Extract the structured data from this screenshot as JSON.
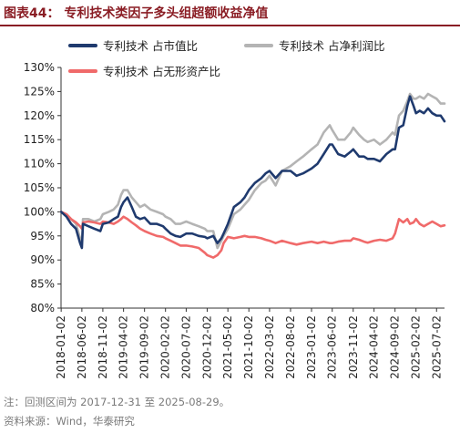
{
  "header": {
    "title": "图表44：  专利技术类因子多头组超额收益净值"
  },
  "notes": {
    "line1": "注：回测区间为 2017-12-31 至 2025-08-29。",
    "line2": "资料来源：Wind，华泰研究"
  },
  "chart_data": {
    "type": "line",
    "title": "",
    "xlabel": "",
    "ylabel": "",
    "ylim": [
      0.8,
      1.3
    ],
    "y_ticks": [
      "80%",
      "85%",
      "90%",
      "95%",
      "100%",
      "105%",
      "110%",
      "115%",
      "120%",
      "125%",
      "130%"
    ],
    "x_range": [
      "2018-01-01",
      "2025-08-29"
    ],
    "x_ticks": [
      "2018-01-02",
      "2018-06-02",
      "2018-11-02",
      "2019-04-02",
      "2019-09-02",
      "2020-02-02",
      "2020-07-02",
      "2020-12-02",
      "2021-05-02",
      "2021-10-02",
      "2022-03-02",
      "2022-08-02",
      "2023-01-02",
      "2023-06-02",
      "2023-11-02",
      "2024-04-02",
      "2024-09-02",
      "2025-02-02",
      "2025-07-02"
    ],
    "legend_position": "top",
    "grid": false,
    "series": [
      {
        "name": "专利技术 占市值比",
        "color": "#1f3a6e",
        "points": [
          [
            "2018-01-02",
            1.0
          ],
          [
            "2018-02-10",
            0.99
          ],
          [
            "2018-03-15",
            0.975
          ],
          [
            "2018-04-20",
            0.965
          ],
          [
            "2018-05-20",
            0.935
          ],
          [
            "2018-06-02",
            0.925
          ],
          [
            "2018-06-10",
            0.975
          ],
          [
            "2018-07-20",
            0.97
          ],
          [
            "2018-09-01",
            0.965
          ],
          [
            "2018-10-15",
            0.96
          ],
          [
            "2018-11-02",
            0.975
          ],
          [
            "2018-12-15",
            0.978
          ],
          [
            "2019-01-20",
            0.985
          ],
          [
            "2019-02-20",
            0.99
          ],
          [
            "2019-03-15",
            1.01
          ],
          [
            "2019-04-02",
            1.02
          ],
          [
            "2019-05-01",
            1.03
          ],
          [
            "2019-06-01",
            1.01
          ],
          [
            "2019-07-01",
            0.99
          ],
          [
            "2019-08-01",
            0.985
          ],
          [
            "2019-09-02",
            0.988
          ],
          [
            "2019-10-15",
            0.975
          ],
          [
            "2019-12-01",
            0.975
          ],
          [
            "2020-01-15",
            0.97
          ],
          [
            "2020-02-02",
            0.965
          ],
          [
            "2020-03-10",
            0.955
          ],
          [
            "2020-04-15",
            0.95
          ],
          [
            "2020-05-20",
            0.948
          ],
          [
            "2020-07-02",
            0.955
          ],
          [
            "2020-08-15",
            0.955
          ],
          [
            "2020-10-01",
            0.95
          ],
          [
            "2020-11-15",
            0.948
          ],
          [
            "2020-12-02",
            0.945
          ],
          [
            "2021-01-15",
            0.95
          ],
          [
            "2021-02-15",
            0.935
          ],
          [
            "2021-03-15",
            0.945
          ],
          [
            "2021-04-01",
            0.955
          ],
          [
            "2021-05-02",
            0.975
          ],
          [
            "2021-06-15",
            1.01
          ],
          [
            "2021-08-01",
            1.02
          ],
          [
            "2021-09-01",
            1.03
          ],
          [
            "2021-10-02",
            1.045
          ],
          [
            "2021-11-15",
            1.06
          ],
          [
            "2022-01-01",
            1.07
          ],
          [
            "2022-02-01",
            1.08
          ],
          [
            "2022-03-02",
            1.085
          ],
          [
            "2022-04-15",
            1.07
          ],
          [
            "2022-06-01",
            1.085
          ],
          [
            "2022-08-02",
            1.085
          ],
          [
            "2022-09-15",
            1.075
          ],
          [
            "2022-11-01",
            1.08
          ],
          [
            "2023-01-02",
            1.09
          ],
          [
            "2023-02-15",
            1.1
          ],
          [
            "2023-04-01",
            1.12
          ],
          [
            "2023-05-15",
            1.14
          ],
          [
            "2023-06-02",
            1.14
          ],
          [
            "2023-07-15",
            1.12
          ],
          [
            "2023-09-01",
            1.115
          ],
          [
            "2023-10-15",
            1.125
          ],
          [
            "2023-11-02",
            1.13
          ],
          [
            "2023-12-15",
            1.115
          ],
          [
            "2024-01-20",
            1.115
          ],
          [
            "2024-02-15",
            1.11
          ],
          [
            "2024-04-02",
            1.11
          ],
          [
            "2024-05-15",
            1.105
          ],
          [
            "2024-07-01",
            1.12
          ],
          [
            "2024-08-15",
            1.13
          ],
          [
            "2024-09-02",
            1.13
          ],
          [
            "2024-10-01",
            1.175
          ],
          [
            "2024-11-01",
            1.18
          ],
          [
            "2024-12-01",
            1.22
          ],
          [
            "2024-12-20",
            1.24
          ],
          [
            "2025-01-15",
            1.22
          ],
          [
            "2025-02-02",
            1.205
          ],
          [
            "2025-03-01",
            1.21
          ],
          [
            "2025-04-01",
            1.205
          ],
          [
            "2025-05-01",
            1.215
          ],
          [
            "2025-06-01",
            1.205
          ],
          [
            "2025-07-02",
            1.2
          ],
          [
            "2025-08-01",
            1.2
          ],
          [
            "2025-08-29",
            1.188
          ]
        ]
      },
      {
        "name": "专利技术 占净利润比",
        "color": "#b4b4b4",
        "points": [
          [
            "2018-01-02",
            1.0
          ],
          [
            "2018-02-10",
            0.995
          ],
          [
            "2018-03-15",
            0.985
          ],
          [
            "2018-04-20",
            0.975
          ],
          [
            "2018-05-20",
            0.945
          ],
          [
            "2018-06-02",
            0.935
          ],
          [
            "2018-06-10",
            0.985
          ],
          [
            "2018-07-20",
            0.985
          ],
          [
            "2018-09-01",
            0.98
          ],
          [
            "2018-10-15",
            0.985
          ],
          [
            "2018-11-02",
            0.995
          ],
          [
            "2018-12-15",
            1.0
          ],
          [
            "2019-01-20",
            1.005
          ],
          [
            "2019-02-20",
            1.015
          ],
          [
            "2019-03-15",
            1.035
          ],
          [
            "2019-04-02",
            1.045
          ],
          [
            "2019-05-01",
            1.045
          ],
          [
            "2019-06-01",
            1.03
          ],
          [
            "2019-07-01",
            1.02
          ],
          [
            "2019-08-01",
            1.01
          ],
          [
            "2019-09-02",
            1.015
          ],
          [
            "2019-10-15",
            1.005
          ],
          [
            "2019-12-01",
            1.0
          ],
          [
            "2020-01-15",
            0.995
          ],
          [
            "2020-02-02",
            0.99
          ],
          [
            "2020-03-10",
            0.985
          ],
          [
            "2020-04-15",
            0.975
          ],
          [
            "2020-05-20",
            0.975
          ],
          [
            "2020-07-02",
            0.98
          ],
          [
            "2020-08-15",
            0.975
          ],
          [
            "2020-10-01",
            0.97
          ],
          [
            "2020-11-15",
            0.965
          ],
          [
            "2020-12-02",
            0.96
          ],
          [
            "2021-01-15",
            0.96
          ],
          [
            "2021-02-15",
            0.925
          ],
          [
            "2021-03-15",
            0.94
          ],
          [
            "2021-04-01",
            0.95
          ],
          [
            "2021-05-02",
            0.965
          ],
          [
            "2021-06-15",
            0.995
          ],
          [
            "2021-08-01",
            1.005
          ],
          [
            "2021-09-01",
            1.015
          ],
          [
            "2021-10-02",
            1.025
          ],
          [
            "2021-11-15",
            1.045
          ],
          [
            "2022-01-01",
            1.06
          ],
          [
            "2022-02-01",
            1.065
          ],
          [
            "2022-03-02",
            1.075
          ],
          [
            "2022-04-15",
            1.055
          ],
          [
            "2022-06-01",
            1.085
          ],
          [
            "2022-08-02",
            1.095
          ],
          [
            "2022-09-15",
            1.105
          ],
          [
            "2022-11-01",
            1.115
          ],
          [
            "2023-01-02",
            1.13
          ],
          [
            "2023-02-15",
            1.14
          ],
          [
            "2023-04-01",
            1.165
          ],
          [
            "2023-05-15",
            1.18
          ],
          [
            "2023-06-02",
            1.17
          ],
          [
            "2023-07-15",
            1.15
          ],
          [
            "2023-09-01",
            1.15
          ],
          [
            "2023-10-15",
            1.165
          ],
          [
            "2023-11-02",
            1.175
          ],
          [
            "2023-12-15",
            1.16
          ],
          [
            "2024-01-20",
            1.15
          ],
          [
            "2024-02-15",
            1.145
          ],
          [
            "2024-04-02",
            1.15
          ],
          [
            "2024-05-15",
            1.14
          ],
          [
            "2024-07-01",
            1.15
          ],
          [
            "2024-08-15",
            1.165
          ],
          [
            "2024-09-02",
            1.16
          ],
          [
            "2024-10-01",
            1.2
          ],
          [
            "2024-11-01",
            1.21
          ],
          [
            "2024-12-01",
            1.23
          ],
          [
            "2024-12-20",
            1.245
          ],
          [
            "2025-01-15",
            1.235
          ],
          [
            "2025-02-02",
            1.235
          ],
          [
            "2025-03-01",
            1.24
          ],
          [
            "2025-04-01",
            1.235
          ],
          [
            "2025-05-01",
            1.245
          ],
          [
            "2025-06-01",
            1.24
          ],
          [
            "2025-07-02",
            1.235
          ],
          [
            "2025-08-01",
            1.225
          ],
          [
            "2025-08-29",
            1.225
          ]
        ]
      },
      {
        "name": "专利技术 占无形资产比",
        "color": "#f06a6a",
        "points": [
          [
            "2018-01-02",
            1.0
          ],
          [
            "2018-02-10",
            0.995
          ],
          [
            "2018-03-15",
            0.985
          ],
          [
            "2018-04-20",
            0.978
          ],
          [
            "2018-05-20",
            0.97
          ],
          [
            "2018-06-02",
            0.965
          ],
          [
            "2018-06-10",
            0.978
          ],
          [
            "2018-07-20",
            0.98
          ],
          [
            "2018-09-01",
            0.978
          ],
          [
            "2018-10-15",
            0.975
          ],
          [
            "2018-11-02",
            0.98
          ],
          [
            "2018-12-15",
            0.978
          ],
          [
            "2019-01-20",
            0.975
          ],
          [
            "2019-02-20",
            0.98
          ],
          [
            "2019-03-15",
            0.985
          ],
          [
            "2019-04-02",
            0.99
          ],
          [
            "2019-05-01",
            0.985
          ],
          [
            "2019-06-01",
            0.978
          ],
          [
            "2019-07-01",
            0.972
          ],
          [
            "2019-08-01",
            0.965
          ],
          [
            "2019-09-02",
            0.96
          ],
          [
            "2019-10-15",
            0.955
          ],
          [
            "2019-12-01",
            0.95
          ],
          [
            "2020-01-15",
            0.948
          ],
          [
            "2020-02-02",
            0.945
          ],
          [
            "2020-03-10",
            0.94
          ],
          [
            "2020-04-15",
            0.935
          ],
          [
            "2020-05-20",
            0.93
          ],
          [
            "2020-07-02",
            0.93
          ],
          [
            "2020-08-15",
            0.928
          ],
          [
            "2020-10-01",
            0.925
          ],
          [
            "2020-11-15",
            0.915
          ],
          [
            "2020-12-02",
            0.91
          ],
          [
            "2021-01-15",
            0.905
          ],
          [
            "2021-02-15",
            0.91
          ],
          [
            "2021-03-15",
            0.92
          ],
          [
            "2021-04-01",
            0.935
          ],
          [
            "2021-05-02",
            0.948
          ],
          [
            "2021-06-15",
            0.945
          ],
          [
            "2021-08-01",
            0.948
          ],
          [
            "2021-09-01",
            0.95
          ],
          [
            "2021-10-02",
            0.948
          ],
          [
            "2021-11-15",
            0.948
          ],
          [
            "2022-01-01",
            0.945
          ],
          [
            "2022-02-01",
            0.942
          ],
          [
            "2022-03-02",
            0.94
          ],
          [
            "2022-04-15",
            0.935
          ],
          [
            "2022-06-01",
            0.94
          ],
          [
            "2022-08-02",
            0.935
          ],
          [
            "2022-09-15",
            0.932
          ],
          [
            "2022-11-01",
            0.935
          ],
          [
            "2023-01-02",
            0.938
          ],
          [
            "2023-02-15",
            0.935
          ],
          [
            "2023-04-01",
            0.938
          ],
          [
            "2023-05-15",
            0.935
          ],
          [
            "2023-06-02",
            0.935
          ],
          [
            "2023-07-15",
            0.938
          ],
          [
            "2023-09-01",
            0.94
          ],
          [
            "2023-10-15",
            0.94
          ],
          [
            "2023-11-02",
            0.945
          ],
          [
            "2023-12-15",
            0.942
          ],
          [
            "2024-01-20",
            0.938
          ],
          [
            "2024-02-15",
            0.936
          ],
          [
            "2024-04-02",
            0.94
          ],
          [
            "2024-05-15",
            0.942
          ],
          [
            "2024-07-01",
            0.94
          ],
          [
            "2024-08-15",
            0.945
          ],
          [
            "2024-09-02",
            0.955
          ],
          [
            "2024-10-01",
            0.985
          ],
          [
            "2024-11-01",
            0.978
          ],
          [
            "2024-12-01",
            0.985
          ],
          [
            "2024-12-20",
            0.975
          ],
          [
            "2025-01-15",
            0.978
          ],
          [
            "2025-02-02",
            0.985
          ],
          [
            "2025-03-01",
            0.975
          ],
          [
            "2025-04-01",
            0.97
          ],
          [
            "2025-05-01",
            0.975
          ],
          [
            "2025-06-01",
            0.98
          ],
          [
            "2025-07-02",
            0.975
          ],
          [
            "2025-08-01",
            0.97
          ],
          [
            "2025-08-29",
            0.972
          ]
        ]
      }
    ]
  }
}
